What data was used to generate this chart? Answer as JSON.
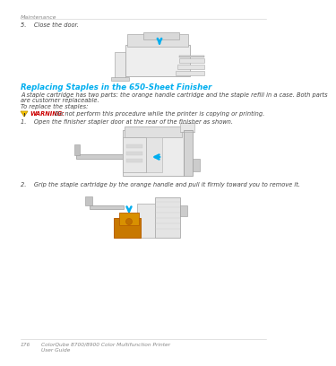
{
  "background_color": "#ffffff",
  "top_label": "Maintenance",
  "step5_text": "5.    Close the door.",
  "section_title": "Replacing Staples in the 650-Sheet Finisher",
  "section_title_color": "#00aeef",
  "body_text1": "A staple cartridge has two parts: the orange handle cartridge and the staple refill in a case. Both parts",
  "body_text1b": "are customer replaceable.",
  "body_text2": "To replace the staples:",
  "warning_label": "WARNING:",
  "warning_label_color": "#cc0000",
  "warning_text": " Do not perform this procedure while the printer is copying or printing.",
  "step1_text": "1.    Open the finisher stapler door at the rear of the finisher as shown.",
  "step2_text": "2.    Grip the staple cartridge by the orange handle and pull it firmly toward you to remove it.",
  "footer_page": "176",
  "footer_product": "ColorQube 8700/8900 Color Multifunction Printer",
  "footer_guide": "User Guide",
  "font_size_top": 4.5,
  "font_size_body": 4.8,
  "font_size_title": 6.2,
  "font_size_footer": 4.2,
  "text_color": "#444444",
  "gray_color": "#888888"
}
